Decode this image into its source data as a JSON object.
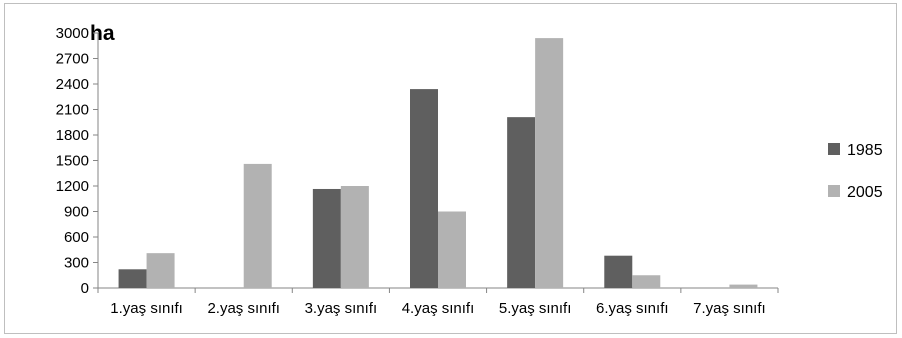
{
  "chart_data": {
    "type": "bar",
    "unit_label": "ha",
    "categories": [
      "1.yaş sınıfı",
      "2.yaş sınıfı",
      "3.yaş sınıfı",
      "4.yaş sınıfı",
      "5.yaş sınıfı",
      "6.yaş sınıfı",
      "7.yaş sınıfı"
    ],
    "series": [
      {
        "name": "1985",
        "color": "#5f5f5f",
        "values": [
          220,
          0,
          1165,
          2340,
          2010,
          380,
          0
        ]
      },
      {
        "name": "2005",
        "color": "#b2b2b2",
        "values": [
          410,
          1460,
          1200,
          900,
          2940,
          150,
          40
        ]
      }
    ],
    "yticks": [
      "0",
      "300",
      "600",
      "900",
      "1200",
      "1500",
      "1800",
      "2100",
      "2400",
      "2700",
      "3000"
    ],
    "ylim": [
      0,
      3000
    ],
    "grid": false,
    "legend_position": "right"
  }
}
